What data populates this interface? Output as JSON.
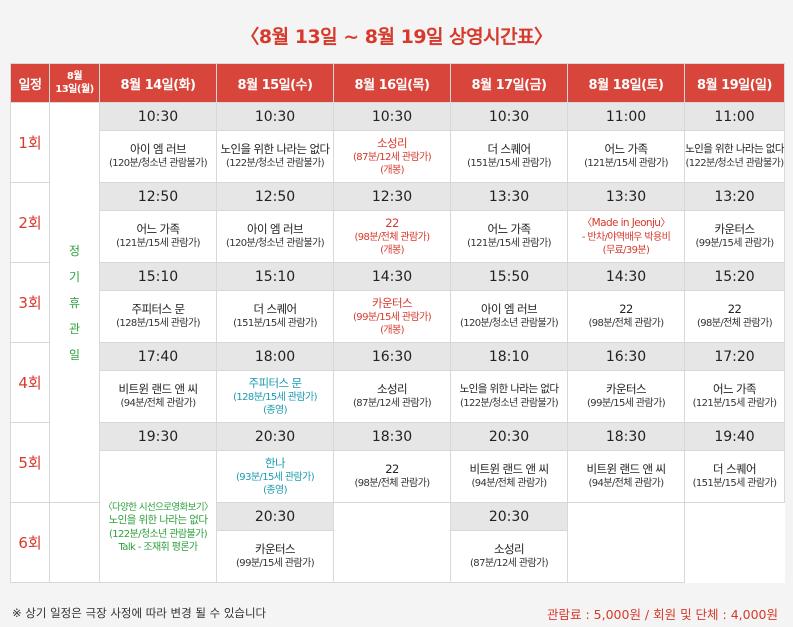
{
  "title": "〈8월 13일 ~ 8월 19일 상영시간표〉",
  "header": {
    "round_col": "일정",
    "closed_col": "8월\n13일(월)",
    "days": [
      "8월 14일(화)",
      "8월 15일(수)",
      "8월 16일(목)",
      "8월 17일(금)",
      "8월 18일(토)",
      "8월 19일(일)"
    ]
  },
  "rounds": [
    "1회",
    "2회",
    "3회",
    "4회",
    "5회",
    "6회"
  ],
  "closed_text": "정\n기\n휴\n관\n일",
  "r1": {
    "times": [
      "10:30",
      "10:30",
      "10:30",
      "10:30",
      "11:00",
      "11:00"
    ],
    "info": [
      {
        "mv": "아이 엠 러브",
        "sub": "(120분/청소년 관람불가)"
      },
      {
        "mv": "노인을 위한 나라는 없다",
        "sub": "(122분/청소년 관람불가)"
      },
      {
        "mv": "소성리",
        "sub": "(87분/12세 관람가)",
        "sub2": "(개봉)"
      },
      {
        "mv": "더 스퀘어",
        "sub": "(151분/15세 관람가)"
      },
      {
        "mv": "어느 가족",
        "sub": "(121분/15세 관람가)"
      },
      {
        "mv": "노인을 위한 나라는 없다",
        "sub": "(122분/청소년 관람불가)"
      }
    ]
  },
  "r2": {
    "times": [
      "12:50",
      "12:50",
      "12:30",
      "13:30",
      "13:30",
      "13:20"
    ],
    "info": [
      {
        "mv": "어느 가족",
        "sub": "(121분/15세 관람가)"
      },
      {
        "mv": "아이 엠 러브",
        "sub": "(120분/청소년 관람불가)"
      },
      {
        "mv": "22",
        "sub": "(98분/전체 관람가)",
        "sub2": "(개봉)"
      },
      {
        "mv": "어느 가족",
        "sub": "(121분/15세 관람가)"
      },
      {
        "mv": "〈Made in Jeonju〉",
        "sub": "- 반차/야역배우 박용비",
        "sub2": "(무료/39분)"
      },
      {
        "mv": "카운터스",
        "sub": "(99분/15세 관람가)"
      }
    ]
  },
  "r3": {
    "times": [
      "15:10",
      "15:10",
      "14:30",
      "15:50",
      "14:30",
      "15:20"
    ],
    "info": [
      {
        "mv": "주피터스 문",
        "sub": "(128분/15세 관람가)"
      },
      {
        "mv": "더 스퀘어",
        "sub": "(151분/15세 관람가)"
      },
      {
        "mv": "카운터스",
        "sub": "(99분/15세 관람가)",
        "sub2": "(개봉)"
      },
      {
        "mv": "아이 엠 러브",
        "sub": "(120분/청소년 관람불가)"
      },
      {
        "mv": "22",
        "sub": "(98분/전체 관람가)"
      },
      {
        "mv": "22",
        "sub": "(98분/전체 관람가)"
      }
    ]
  },
  "r4": {
    "times": [
      "17:40",
      "18:00",
      "16:30",
      "18:10",
      "16:30",
      "17:20"
    ],
    "info": [
      {
        "mv": "비트윈 랜드 앤 씨",
        "sub": "(94분/전체 관람가)"
      },
      {
        "mv": "주피터스 문",
        "sub": "(128분/15세 관람가)",
        "sub2": "(종영)"
      },
      {
        "mv": "소성리",
        "sub": "(87분/12세 관람가)"
      },
      {
        "mv": "노인을 위한 나라는 없다",
        "sub": "(122분/청소년 관람불가)"
      },
      {
        "mv": "카운터스",
        "sub": "(99분/15세 관람가)"
      },
      {
        "mv": "어느 가족",
        "sub": "(121분/15세 관람가)"
      }
    ]
  },
  "r5": {
    "times": [
      "19:30",
      "20:30",
      "18:30",
      "20:30",
      "18:30",
      "19:40"
    ],
    "info": [
      {
        "mv": "한나",
        "sub": "(93분/15세 관람가)",
        "sub2": "(종영)"
      },
      {
        "mv": "22",
        "sub": "(98분/전체 관람가)"
      },
      {
        "mv": "비트윈 랜드 앤 씨",
        "sub": "(94분/전체 관람가)"
      },
      {
        "mv": "비트윈 랜드 앤 씨",
        "sub": "(94분/전체 관람가)"
      },
      {
        "mv": "더 스퀘어",
        "sub": "(151분/15세 관람가)"
      }
    ],
    "special": {
      "l1": "〈다양한 시선으로영화보기〉",
      "l2": "노인을 위한 나라는 없다",
      "l3": "(122분/청소년 관람불가)",
      "l4": "Talk - 조재휘 평론가"
    }
  },
  "r6": {
    "times": [
      "20:30",
      "20:30"
    ],
    "info": [
      {
        "mv": "카운터스",
        "sub": "(99분/15세 관람가)"
      },
      {
        "mv": "소성리",
        "sub": "(87분/12세 관람가)"
      }
    ]
  },
  "footer": {
    "note": "※ 상기 일정은 극장 사정에 따라 변경 될 수 있습니다",
    "price": "관람료 : 5,000원 / 회원 및 단체 : 4,000원"
  },
  "colors": {
    "accent_red": "#d63a2c",
    "header_bg": "#d8453a",
    "green": "#2e9f3c",
    "teal": "#1a9bb0"
  }
}
